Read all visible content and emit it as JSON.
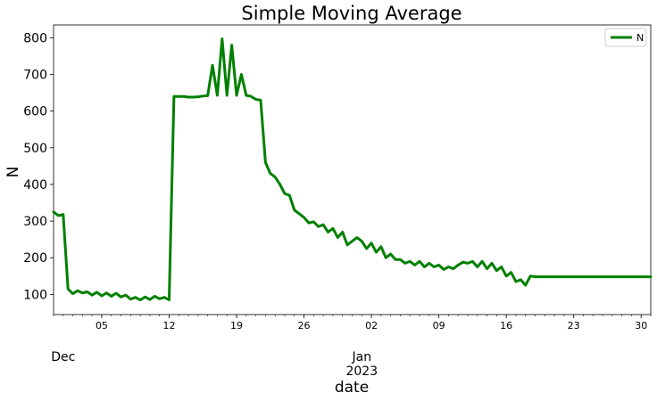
{
  "chart_data": {
    "type": "line",
    "title": "Simple Moving Average",
    "xlabel": "date",
    "ylabel": "N",
    "ylim": [
      45,
      835
    ],
    "xlim": [
      "2022-11-30",
      "2023-01-31"
    ],
    "grid": false,
    "legend": {
      "placement": "top-right",
      "entries": [
        "N"
      ]
    },
    "y_ticks": [
      100,
      200,
      300,
      400,
      500,
      600,
      700,
      800
    ],
    "x_ticks": [
      {
        "date": "2022-12-05",
        "label": "05"
      },
      {
        "date": "2022-12-12",
        "label": "12"
      },
      {
        "date": "2022-12-19",
        "label": "19"
      },
      {
        "date": "2022-12-26",
        "label": "26"
      },
      {
        "date": "2023-01-02",
        "label": "02"
      },
      {
        "date": "2023-01-09",
        "label": "09"
      },
      {
        "date": "2023-01-16",
        "label": "16"
      },
      {
        "date": "2023-01-23",
        "label": "23"
      },
      {
        "date": "2023-01-30",
        "label": "30"
      }
    ],
    "x_major_labels": [
      {
        "date": "2022-12-01",
        "label": "Dec"
      },
      {
        "date": "2023-01-01",
        "label": "Jan\n2023"
      }
    ],
    "series": [
      {
        "name": "N",
        "color": "#008000",
        "x": [
          "2022-11-30 00:00",
          "2022-11-30 12:00",
          "2022-12-01 00:00",
          "2022-12-01 12:00",
          "2022-12-02 00:00",
          "2022-12-02 12:00",
          "2022-12-03 00:00",
          "2022-12-03 12:00",
          "2022-12-04 00:00",
          "2022-12-04 12:00",
          "2022-12-05 00:00",
          "2022-12-05 12:00",
          "2022-12-06 00:00",
          "2022-12-06 12:00",
          "2022-12-07 00:00",
          "2022-12-07 12:00",
          "2022-12-08 00:00",
          "2022-12-08 12:00",
          "2022-12-09 00:00",
          "2022-12-09 12:00",
          "2022-12-10 00:00",
          "2022-12-10 12:00",
          "2022-12-11 00:00",
          "2022-12-11 12:00",
          "2022-12-12 00:00",
          "2022-12-12 12:00",
          "2022-12-13 00:00",
          "2022-12-13 12:00",
          "2022-12-14 00:00",
          "2022-12-14 12:00",
          "2022-12-15 00:00",
          "2022-12-15 12:00",
          "2022-12-16 00:00",
          "2022-12-16 12:00",
          "2022-12-17 00:00",
          "2022-12-17 12:00",
          "2022-12-18 00:00",
          "2022-12-18 12:00",
          "2022-12-19 00:00",
          "2022-12-19 12:00",
          "2022-12-20 00:00",
          "2022-12-20 12:00",
          "2022-12-21 00:00",
          "2022-12-21 12:00",
          "2022-12-22 00:00",
          "2022-12-22 12:00",
          "2022-12-23 00:00",
          "2022-12-23 12:00",
          "2022-12-24 00:00",
          "2022-12-24 12:00",
          "2022-12-25 00:00",
          "2022-12-25 12:00",
          "2022-12-26 00:00",
          "2022-12-26 12:00",
          "2022-12-27 00:00",
          "2022-12-27 12:00",
          "2022-12-28 00:00",
          "2022-12-28 12:00",
          "2022-12-29 00:00",
          "2022-12-29 12:00",
          "2022-12-30 00:00",
          "2022-12-30 12:00",
          "2022-12-31 00:00",
          "2022-12-31 12:00",
          "2023-01-01 00:00",
          "2023-01-01 12:00",
          "2023-01-02 00:00",
          "2023-01-02 12:00",
          "2023-01-03 00:00",
          "2023-01-03 12:00",
          "2023-01-04 00:00",
          "2023-01-04 12:00",
          "2023-01-05 00:00",
          "2023-01-05 12:00",
          "2023-01-06 00:00",
          "2023-01-06 12:00",
          "2023-01-07 00:00",
          "2023-01-07 12:00",
          "2023-01-08 00:00",
          "2023-01-08 12:00",
          "2023-01-09 00:00",
          "2023-01-09 12:00",
          "2023-01-10 00:00",
          "2023-01-10 12:00",
          "2023-01-11 00:00",
          "2023-01-11 12:00",
          "2023-01-12 00:00",
          "2023-01-12 12:00",
          "2023-01-13 00:00",
          "2023-01-13 12:00",
          "2023-01-14 00:00",
          "2023-01-14 12:00",
          "2023-01-15 00:00",
          "2023-01-15 12:00",
          "2023-01-16 00:00",
          "2023-01-16 12:00",
          "2023-01-17 00:00",
          "2023-01-17 12:00",
          "2023-01-18 00:00",
          "2023-01-18 12:00",
          "2023-01-19 00:00",
          "2023-01-20 00:00",
          "2023-01-21 00:00",
          "2023-01-22 00:00",
          "2023-01-23 00:00",
          "2023-01-24 00:00",
          "2023-01-25 00:00",
          "2023-01-26 00:00",
          "2023-01-27 00:00",
          "2023-01-28 00:00",
          "2023-01-29 00:00",
          "2023-01-30 00:00",
          "2023-01-31 00:00"
        ],
        "y": [
          325,
          315,
          318,
          115,
          102,
          110,
          104,
          107,
          98,
          106,
          96,
          104,
          95,
          103,
          93,
          98,
          87,
          92,
          85,
          93,
          86,
          95,
          88,
          92,
          85,
          640,
          640,
          640,
          638,
          638,
          639,
          641,
          642,
          725,
          643,
          797,
          643,
          780,
          643,
          700,
          643,
          640,
          632,
          630,
          460,
          430,
          420,
          400,
          375,
          370,
          330,
          320,
          310,
          295,
          298,
          285,
          290,
          270,
          280,
          255,
          270,
          235,
          245,
          255,
          245,
          225,
          240,
          215,
          230,
          200,
          210,
          195,
          195,
          185,
          190,
          180,
          190,
          175,
          185,
          175,
          180,
          168,
          175,
          170,
          180,
          188,
          185,
          190,
          175,
          190,
          170,
          185,
          165,
          175,
          150,
          160,
          135,
          140,
          125,
          150,
          148,
          148,
          148,
          148,
          148,
          148,
          148,
          148,
          148,
          148,
          148,
          148,
          148
        ]
      }
    ]
  }
}
